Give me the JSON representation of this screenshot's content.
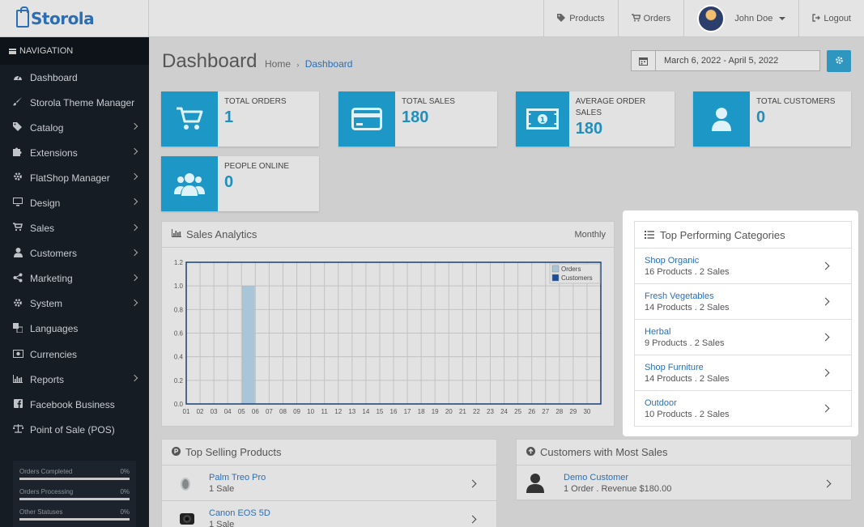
{
  "app": {
    "logo": "Storola"
  },
  "topnav": {
    "products": "Products",
    "orders": "Orders",
    "user": "John Doe",
    "logout": "Logout"
  },
  "sidebar": {
    "heading": "NAVIGATION",
    "items": [
      {
        "label": "Dashboard",
        "icon": "dashboard-icon",
        "chevron": false
      },
      {
        "label": "Storola Theme Manager",
        "icon": "brush-icon",
        "chevron": false
      },
      {
        "label": "Catalog",
        "icon": "tag-icon",
        "chevron": true
      },
      {
        "label": "Extensions",
        "icon": "puzzle-icon",
        "chevron": true
      },
      {
        "label": "FlatShop Manager",
        "icon": "gear-icon",
        "chevron": true
      },
      {
        "label": "Design",
        "icon": "monitor-icon",
        "chevron": true
      },
      {
        "label": "Sales",
        "icon": "cart-icon",
        "chevron": true
      },
      {
        "label": "Customers",
        "icon": "user-icon",
        "chevron": true
      },
      {
        "label": "Marketing",
        "icon": "share-icon",
        "chevron": true
      },
      {
        "label": "System",
        "icon": "cog-icon",
        "chevron": true
      },
      {
        "label": "Languages",
        "icon": "language-icon",
        "chevron": false
      },
      {
        "label": "Currencies",
        "icon": "money-icon",
        "chevron": false
      },
      {
        "label": "Reports",
        "icon": "bar-chart-icon",
        "chevron": true
      },
      {
        "label": "Facebook Business",
        "icon": "facebook-icon",
        "chevron": false
      },
      {
        "label": "Point of Sale (POS)",
        "icon": "scale-icon",
        "chevron": false
      }
    ],
    "stats": [
      {
        "label": "Orders Completed",
        "value": "0%"
      },
      {
        "label": "Orders Processing",
        "value": "0%"
      },
      {
        "label": "Other Statuses",
        "value": "0%"
      }
    ]
  },
  "page": {
    "title": "Dashboard",
    "breadcrumb_home": "Home",
    "breadcrumb_sep": "›",
    "breadcrumb_current": "Dashboard",
    "date_range": "March 6, 2022 - April 5, 2022"
  },
  "tiles": {
    "total_orders": {
      "label": "TOTAL ORDERS",
      "value": "1"
    },
    "total_sales": {
      "label": "TOTAL SALES",
      "value": "180"
    },
    "average_order": {
      "label": "AVERAGE ORDER SALES",
      "value": "180"
    },
    "total_customers": {
      "label": "TOTAL CUSTOMERS",
      "value": "0"
    },
    "people_online": {
      "label": "PEOPLE ONLINE",
      "value": "0"
    }
  },
  "analytics": {
    "title": "Sales Analytics",
    "period": "Monthly"
  },
  "chart_data": {
    "type": "bar",
    "title": "",
    "xlabel": "",
    "ylabel": "",
    "categories": [
      "01",
      "02",
      "03",
      "04",
      "05",
      "06",
      "07",
      "08",
      "09",
      "10",
      "11",
      "12",
      "13",
      "14",
      "15",
      "16",
      "17",
      "18",
      "19",
      "20",
      "21",
      "22",
      "23",
      "24",
      "25",
      "26",
      "27",
      "28",
      "29",
      "30"
    ],
    "series": [
      {
        "name": "Orders",
        "values": [
          0,
          0,
          0,
          0,
          1,
          0,
          0,
          0,
          0,
          0,
          0,
          0,
          0,
          0,
          0,
          0,
          0,
          0,
          0,
          0,
          0,
          0,
          0,
          0,
          0,
          0,
          0,
          0,
          0,
          0
        ],
        "color": "#a9c6d8"
      },
      {
        "name": "Customers",
        "values": [
          0,
          0,
          0,
          0,
          0,
          0,
          0,
          0,
          0,
          0,
          0,
          0,
          0,
          0,
          0,
          0,
          0,
          0,
          0,
          0,
          0,
          0,
          0,
          0,
          0,
          0,
          0,
          0,
          0,
          0
        ],
        "color": "#1a4f9c"
      }
    ],
    "yticks": [
      "0.0",
      "0.2",
      "0.4",
      "0.6",
      "0.8",
      "1.0",
      "1.2"
    ],
    "ylim": [
      0,
      1.2
    ],
    "grid": true,
    "legend": "top-right"
  },
  "categories_panel": {
    "title": "Top Performing Categories",
    "items": [
      {
        "name": "Shop Organic",
        "meta": "16 Products . 2 Sales"
      },
      {
        "name": "Fresh Vegetables",
        "meta": "14 Products . 2 Sales"
      },
      {
        "name": "Herbal",
        "meta": "9 Products . 2 Sales"
      },
      {
        "name": "Shop Furniture",
        "meta": "14 Products . 2 Sales"
      },
      {
        "name": "Outdoor",
        "meta": "10 Products . 2 Sales"
      }
    ]
  },
  "top_products": {
    "title": "Top Selling Products",
    "items": [
      {
        "name": "Palm Treo Pro",
        "meta": "1 Sale"
      },
      {
        "name": "Canon EOS 5D",
        "meta": "1 Sale"
      }
    ]
  },
  "top_customers": {
    "title": "Customers with Most Sales",
    "items": [
      {
        "name": "Demo Customer",
        "meta": "1 Order . Revenue $180.00"
      }
    ]
  },
  "colors": {
    "accent": "#1d97c6",
    "sidebar": "#161c24",
    "link": "#2a6fb5"
  }
}
